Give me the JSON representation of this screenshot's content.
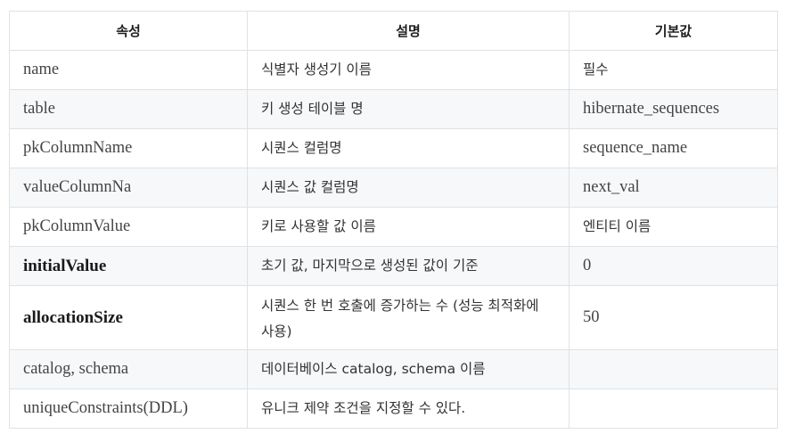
{
  "table": {
    "headers": [
      "속성",
      "설명",
      "기본값"
    ],
    "rows": [
      {
        "attr": "name",
        "desc": "식별자 생성기 이름",
        "default": "필수"
      },
      {
        "attr": "table",
        "desc": "키 생성 테이블 명",
        "default": "hibernate_sequences"
      },
      {
        "attr": "pkColumnName",
        "desc": "시퀀스 컬럼명",
        "default": "sequence_name"
      },
      {
        "attr": "valueColumnNa",
        "desc": "시퀀스 값 컬럼명",
        "default": "next_val"
      },
      {
        "attr": "pkColumnValue",
        "desc": "키로 사용할 값 이름",
        "default": "엔티티 이름"
      },
      {
        "attr": "initialValue",
        "desc": "초기 값, 마지막으로 생성된 값이 기준",
        "default": "0"
      },
      {
        "attr": "allocationSize",
        "desc": "시퀀스 한 번 호출에 증가하는 수 (성능 최적화에 사용)",
        "default": "50"
      },
      {
        "attr": "catalog, schema",
        "desc": "데이터베이스 catalog, schema 이름",
        "default": ""
      },
      {
        "attr": "uniqueConstraints(DDL)",
        "desc": "유니크 제약 조건을 지정할 수 있다.",
        "default": ""
      }
    ]
  }
}
